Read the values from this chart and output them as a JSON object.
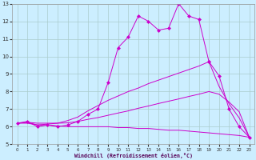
{
  "title": "",
  "xlabel": "Windchill (Refroidissement éolien,°C)",
  "ylabel": "",
  "background_color": "#cceeff",
  "line_color": "#cc00cc",
  "grid_color": "#aacccc",
  "xlim": [
    -0.5,
    23.5
  ],
  "ylim": [
    5,
    13
  ],
  "xticks": [
    0,
    1,
    2,
    3,
    4,
    5,
    6,
    7,
    8,
    9,
    10,
    11,
    12,
    13,
    14,
    15,
    16,
    17,
    18,
    19,
    20,
    21,
    22,
    23
  ],
  "yticks": [
    5,
    6,
    7,
    8,
    9,
    10,
    11,
    12,
    13
  ],
  "series": [
    {
      "x": [
        0,
        1,
        2,
        3,
        4,
        5,
        6,
        7,
        8,
        9,
        10,
        11,
        12,
        13,
        14,
        15,
        16,
        17,
        18,
        19,
        20,
        21,
        22,
        23
      ],
      "y": [
        6.2,
        6.3,
        6.0,
        6.1,
        6.0,
        6.1,
        6.3,
        6.7,
        7.0,
        8.5,
        10.5,
        11.1,
        12.3,
        12.0,
        11.5,
        11.6,
        13.0,
        12.3,
        12.1,
        9.7,
        null,
        null,
        null,
        null
      ],
      "marker": true
    },
    {
      "x": [
        0,
        1,
        2,
        3,
        4,
        5,
        6,
        7,
        8,
        9,
        10,
        11,
        12,
        13,
        14,
        15,
        16,
        17,
        18,
        19,
        20,
        21,
        22,
        23
      ],
      "y": [
        null,
        null,
        null,
        null,
        null,
        null,
        null,
        null,
        null,
        null,
        null,
        null,
        null,
        null,
        null,
        null,
        null,
        null,
        null,
        9.7,
        8.9,
        7.0,
        6.0,
        5.4
      ],
      "marker": true
    },
    {
      "x": [
        0,
        1,
        2,
        3,
        4,
        5,
        6,
        7,
        8,
        9,
        10,
        11,
        12,
        13,
        14,
        15,
        16,
        17,
        18,
        19,
        20,
        21,
        22,
        23
      ],
      "y": [
        6.2,
        6.25,
        6.1,
        6.15,
        6.2,
        6.35,
        6.55,
        6.9,
        7.2,
        7.5,
        7.75,
        8.0,
        8.2,
        8.45,
        8.65,
        8.85,
        9.05,
        9.25,
        9.45,
        9.7,
        null,
        null,
        null,
        null
      ],
      "marker": false
    },
    {
      "x": [
        0,
        1,
        2,
        3,
        4,
        5,
        6,
        7,
        8,
        9,
        10,
        11,
        12,
        13,
        14,
        15,
        16,
        17,
        18,
        19,
        20,
        21,
        22,
        23
      ],
      "y": [
        null,
        null,
        null,
        null,
        null,
        null,
        null,
        null,
        null,
        null,
        null,
        null,
        null,
        null,
        null,
        null,
        null,
        null,
        null,
        9.7,
        8.3,
        7.3,
        6.5,
        5.4
      ],
      "marker": false
    },
    {
      "x": [
        0,
        1,
        2,
        3,
        4,
        5,
        6,
        7,
        8,
        9,
        10,
        11,
        12,
        13,
        14,
        15,
        16,
        17,
        18,
        19,
        20,
        21,
        22,
        23
      ],
      "y": [
        6.2,
        6.2,
        6.1,
        6.1,
        6.05,
        6.0,
        6.0,
        6.0,
        6.0,
        6.0,
        5.95,
        5.95,
        5.9,
        5.9,
        5.85,
        5.8,
        5.8,
        5.75,
        5.7,
        5.65,
        5.6,
        5.55,
        5.5,
        5.4
      ],
      "marker": false
    },
    {
      "x": [
        0,
        1,
        2,
        3,
        4,
        5,
        6,
        7,
        8,
        9,
        10,
        11,
        12,
        13,
        14,
        15,
        16,
        17,
        18,
        19,
        20,
        21,
        22,
        23
      ],
      "y": [
        6.2,
        6.25,
        6.2,
        6.2,
        6.2,
        6.22,
        6.3,
        6.42,
        6.52,
        6.65,
        6.78,
        6.9,
        7.05,
        7.18,
        7.32,
        7.45,
        7.58,
        7.72,
        7.85,
        8.0,
        7.85,
        7.4,
        6.85,
        5.4
      ],
      "marker": false
    }
  ]
}
